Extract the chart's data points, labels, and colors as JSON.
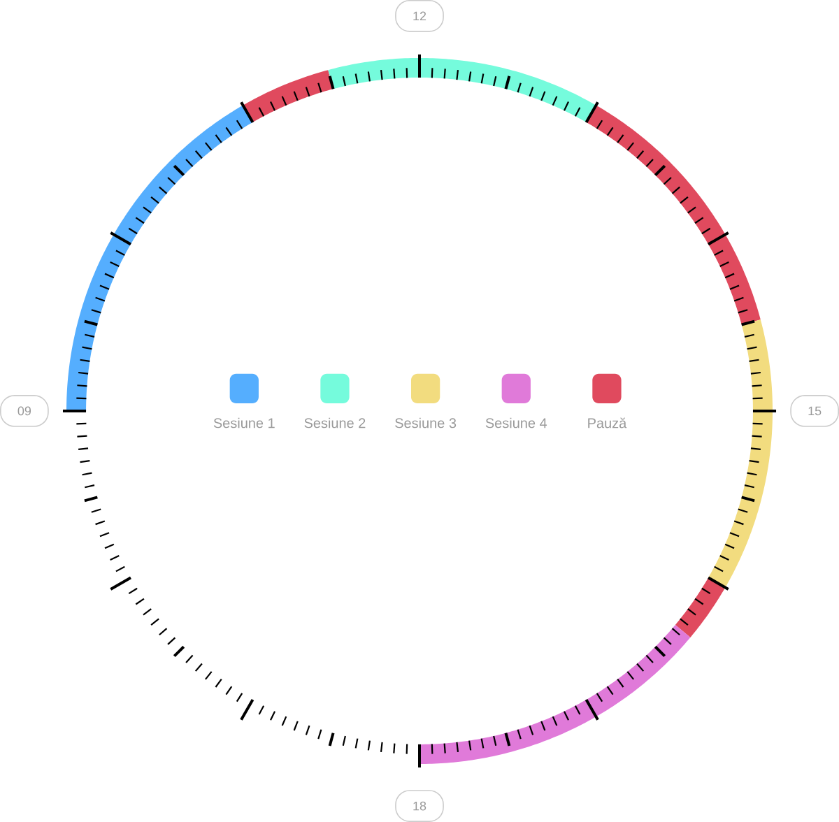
{
  "chart_data": {
    "type": "donut",
    "categories": [
      "Sesiune 1",
      "Pauză",
      "Sesiune 2",
      null,
      "Sesiune 3",
      null,
      "Sesiune 4"
    ],
    "values": [
      2,
      0.5,
      1.5,
      1.5,
      1.5,
      0.33,
      1.67
    ],
    "colors": [
      "#55aefe",
      "#e04a5e",
      "#75fbdc",
      "#e04a5e",
      "#f2dc7f",
      "#e04a5e",
      "#e07ad9"
    ],
    "annotations": [
      "09",
      "12",
      "15",
      "18"
    ],
    "legend": "center"
  }
}
